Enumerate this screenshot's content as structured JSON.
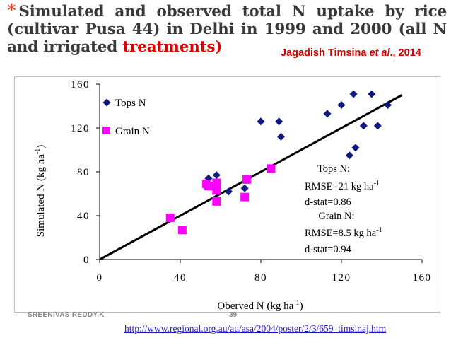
{
  "slide": {
    "title_star": "*",
    "title_main": "Simulated and observed total N uptake by rice (cultivar Pusa 44) in Delhi in 1999 and 2000 (all N and irrigated",
    "title_tail": "treatments)",
    "credit_name": "Jagadish Timsina",
    "credit_etal": "et al",
    "credit_year": "., 2014",
    "footer_author": "SREENIVAS REDDY.K",
    "page_number": "39",
    "source_url": "http://www.regional.org.au/au/asa/2004/poster/2/3/659_timsinaj.htm"
  },
  "colors": {
    "tops": "#0d1a80",
    "grain": "#ff00ff",
    "line": "#000000",
    "title_accent": "#e00000",
    "link": "#1a1acc"
  },
  "chart_data": {
    "type": "scatter",
    "xlabel_main": "Oberved N (kg ha",
    "xlabel_sup": "-1",
    "xlabel_close": ")",
    "ylabel_main": "Simulated N (kg ha",
    "ylabel_sup": "-1",
    "ylabel_close": ")",
    "xlim": [
      0,
      160
    ],
    "ylim": [
      0,
      160
    ],
    "xticks": [
      0,
      40,
      80,
      120,
      160
    ],
    "yticks": [
      0,
      40,
      80,
      120,
      160
    ],
    "grid": false,
    "legend_position": "top-left",
    "one_to_one_line": {
      "from": [
        0,
        0
      ],
      "to": [
        150,
        150
      ]
    },
    "series": [
      {
        "name": "Tops N",
        "marker": "diamond",
        "x": [
          54,
          58,
          64,
          72,
          80,
          90,
          89,
          113,
          120,
          126,
          135,
          143,
          124,
          127,
          131,
          138
        ],
        "y": [
          74,
          77,
          62,
          65,
          126,
          112,
          126,
          133,
          141,
          151,
          151,
          141,
          95,
          102,
          122,
          122
        ]
      },
      {
        "name": "Grain N",
        "marker": "square",
        "x": [
          35,
          41,
          53,
          54,
          58,
          58,
          58,
          72,
          73,
          85
        ],
        "y": [
          38,
          27,
          69,
          67,
          70,
          63,
          53,
          57,
          73,
          83
        ]
      }
    ],
    "annotations": [
      {
        "label": "Tops N:",
        "lines": [
          {
            "text": "RMSE=21 kg ha",
            "sup": "-1"
          },
          {
            "text": "d-stat=0.86",
            "sup": ""
          }
        ]
      },
      {
        "label": "Grain N:",
        "lines": [
          {
            "text": "RMSE=8.5 kg ha",
            "sup": "-1"
          },
          {
            "text": "d-stat=0.94",
            "sup": ""
          }
        ]
      }
    ]
  }
}
